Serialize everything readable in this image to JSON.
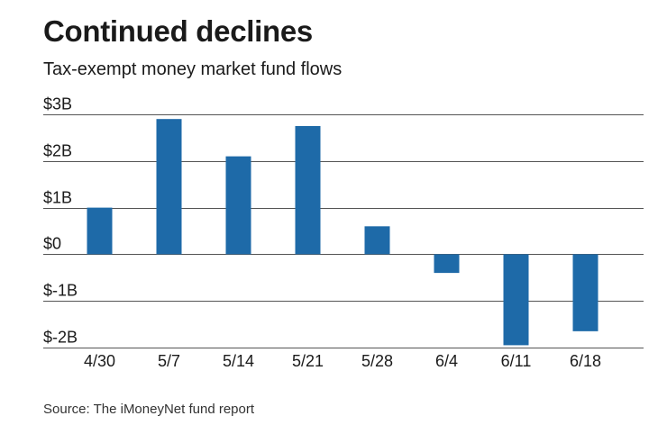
{
  "colors": {
    "bar": "#1e6aa8",
    "grid": "#555555",
    "text": "#1a1a1a"
  },
  "header": {
    "title": "Continued declines",
    "subtitle": "Tax-exempt money market fund flows"
  },
  "footer": {
    "source": "Source: The iMoneyNet fund report"
  },
  "chart_data": {
    "type": "bar",
    "title": "Continued declines",
    "subtitle": "Tax-exempt money market fund flows",
    "xlabel": "",
    "ylabel": "",
    "units": "billions of dollars",
    "categories": [
      "4/30",
      "5/7",
      "5/14",
      "5/21",
      "5/28",
      "6/4",
      "6/11",
      "6/18"
    ],
    "values": [
      1.0,
      2.9,
      2.1,
      2.75,
      0.6,
      -0.4,
      -1.95,
      -1.65
    ],
    "ylim": [
      -2,
      3
    ],
    "yticks": [
      3,
      2,
      1,
      0,
      -1,
      -2
    ],
    "ytick_labels": [
      "$3B",
      "$2B",
      "$1B",
      "$0",
      "$-1B",
      "$-2B"
    ],
    "grid": true,
    "legend": "none"
  }
}
